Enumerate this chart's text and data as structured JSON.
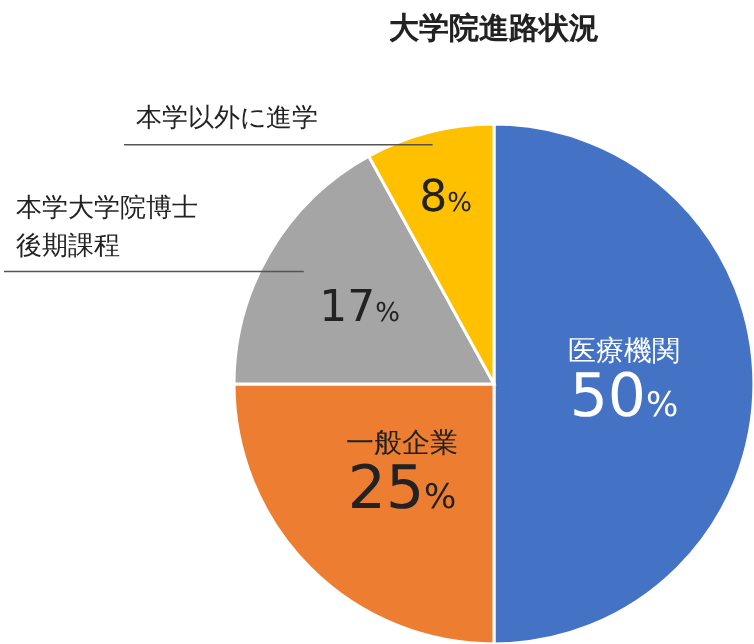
{
  "chart_data": {
    "type": "pie",
    "title": "大学院進路状況",
    "categories": [
      "医療機関",
      "一般企業",
      "本学大学院博士後期課程",
      "本学以外に進学"
    ],
    "values": [
      50,
      25,
      17,
      8
    ],
    "value_labels": [
      "50%",
      "25%",
      "17%",
      "8%"
    ],
    "colors": [
      "#4472c4",
      "#ed7d31",
      "#a5a5a5",
      "#ffc000"
    ]
  }
}
